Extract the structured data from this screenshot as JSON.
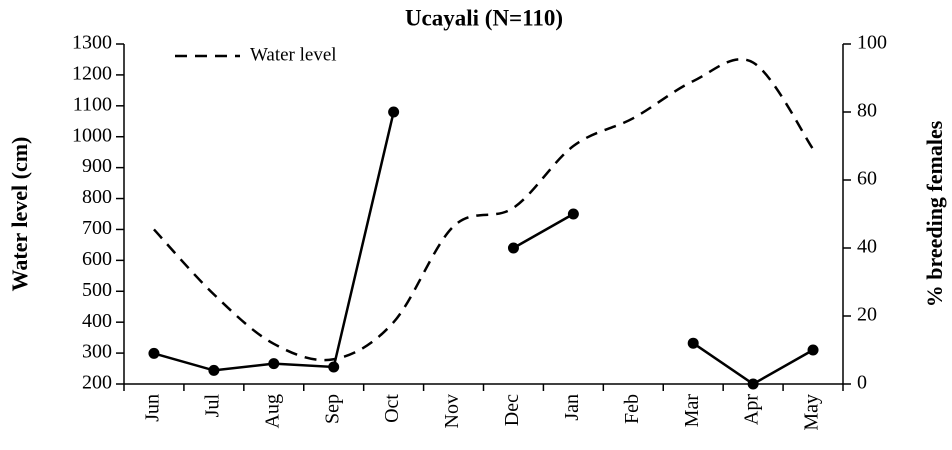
{
  "chart_data": {
    "type": "line",
    "title": "Ucayali (N=110)",
    "ylabel": "Water level (cm)",
    "y2label": "% breeding females",
    "categories": [
      "Jun",
      "Jul",
      "Aug",
      "Sep",
      "Oct",
      "Nov",
      "Dec",
      "Jan",
      "Feb",
      "Mar",
      "Apr",
      "May"
    ],
    "series": [
      {
        "name": "Water level",
        "color": "#000000",
        "style": "dashed",
        "smooth": true,
        "marker": false,
        "axis": "y",
        "values": [
          700,
          490,
          330,
          280,
          400,
          710,
          770,
          970,
          1060,
          1180,
          1240,
          960
        ]
      },
      {
        "color": "#000000",
        "style": "solid",
        "smooth": false,
        "marker": true,
        "axis": "y2",
        "values": [
          9,
          4,
          6,
          5,
          80,
          null,
          40,
          50,
          null,
          12,
          0,
          10
        ]
      }
    ],
    "ylim": [
      200,
      1300
    ],
    "yticks": [
      200,
      300,
      400,
      500,
      600,
      700,
      800,
      900,
      1000,
      1100,
      1200,
      1300
    ],
    "y2lim": [
      0,
      100
    ],
    "y2ticks": [
      0,
      20,
      40,
      60,
      80,
      100
    ],
    "legend": "upper left",
    "grid": false
  }
}
